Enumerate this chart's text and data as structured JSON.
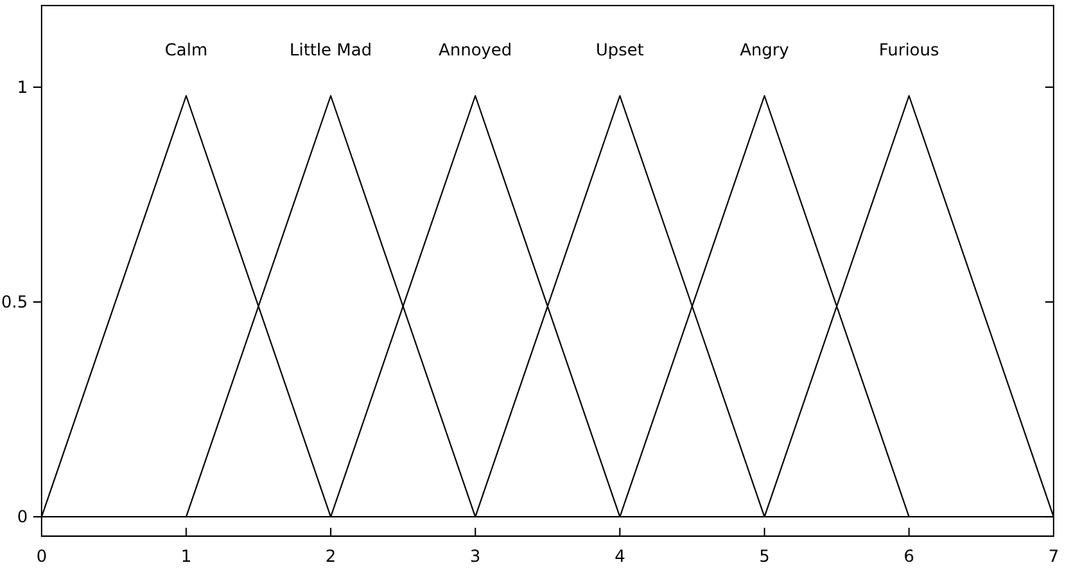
{
  "chart_data": {
    "type": "line",
    "x": [
      0,
      1,
      2,
      3,
      4,
      5,
      6,
      7
    ],
    "xlim": [
      0,
      7
    ],
    "xticks": [
      0,
      1,
      2,
      3,
      4,
      5,
      6,
      7
    ],
    "ylim": [
      -0.045,
      1.19
    ],
    "yticks": [
      0,
      0.5,
      1
    ],
    "grid": false,
    "legend": false,
    "marker": "none",
    "line_style": "solid",
    "series": [
      {
        "name": "Calm",
        "color": "#000000",
        "values": [
          0,
          0.98,
          0,
          0,
          0,
          0,
          0,
          0
        ]
      },
      {
        "name": "Little Mad",
        "color": "#000000",
        "values": [
          0,
          0,
          0.98,
          0,
          0,
          0,
          0,
          0
        ]
      },
      {
        "name": "Annoyed",
        "color": "#000000",
        "values": [
          0,
          0,
          0,
          0.98,
          0,
          0,
          0,
          0
        ]
      },
      {
        "name": "Upset",
        "color": "#000000",
        "values": [
          0,
          0,
          0,
          0,
          0.98,
          0,
          0,
          0
        ]
      },
      {
        "name": "Angry",
        "color": "#000000",
        "values": [
          0,
          0,
          0,
          0,
          0,
          0.98,
          0,
          0
        ]
      },
      {
        "name": "Furious",
        "color": "#000000",
        "values": [
          0,
          0,
          0,
          0,
          0,
          0,
          0.98,
          0
        ]
      }
    ]
  }
}
